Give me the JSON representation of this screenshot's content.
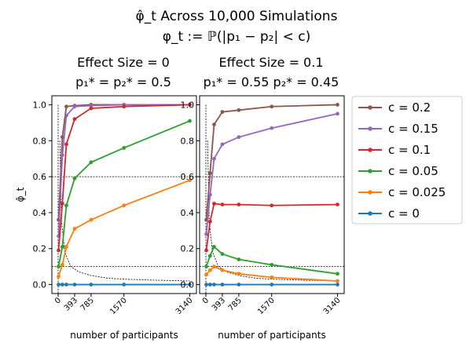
{
  "figure": {
    "title_line1": "φ̂_t Across 10,000 Simulations",
    "title_line2": "φ_t := ℙ(|p₁ − p₂| < c)"
  },
  "shared": {
    "xlabel": "number of participants",
    "ylabel": "φ̂_t",
    "x_ticks": [
      0,
      393,
      785,
      1570,
      3140
    ],
    "y_ticks": [
      0.0,
      0.2,
      0.4,
      0.6,
      0.8,
      1.0
    ],
    "y_tick_labels": [
      "0.0",
      "0.2",
      "0.4",
      "0.6",
      "0.8",
      "1.0"
    ],
    "xlim": [
      -150,
      3300
    ],
    "ylim": [
      -0.05,
      1.05
    ],
    "grid": false,
    "reference_lines": {
      "vertical_x": 0,
      "horizontal_y": [
        0.6,
        0.1
      ],
      "curve_x": [
        40,
        80,
        160,
        300,
        500,
        785,
        1200,
        1570,
        2200,
        3140
      ],
      "curve_y": [
        0.8,
        0.35,
        0.18,
        0.1,
        0.07,
        0.05,
        0.035,
        0.03,
        0.025,
        0.02
      ]
    }
  },
  "legend": {
    "position": "right",
    "entries": [
      "c = 0.2",
      "c = 0.15",
      "c = 0.1",
      "c = 0.05",
      "c = 0.025",
      "c = 0"
    ],
    "colors": [
      "#8c564b",
      "#9467bd",
      "#d62728",
      "#2ca02c",
      "#ff7f0e",
      "#1f77b4"
    ]
  },
  "chart_data": [
    {
      "type": "line",
      "title_line1": "Effect Size = 0",
      "title_line2": "p₁* = p₂* = 0.5",
      "x": [
        10,
        100,
        196,
        393,
        785,
        1570,
        3140
      ],
      "series": [
        {
          "name": "c = 0.2",
          "color": "#8c564b",
          "values": [
            0.36,
            0.82,
            0.99,
            0.995,
            1.0,
            1.0,
            1.0
          ]
        },
        {
          "name": "c = 0.15",
          "color": "#9467bd",
          "values": [
            0.27,
            0.72,
            0.94,
            0.99,
            0.995,
            1.0,
            1.0
          ]
        },
        {
          "name": "c = 0.1",
          "color": "#d62728",
          "values": [
            0.19,
            0.45,
            0.78,
            0.92,
            0.98,
            0.99,
            1.0
          ]
        },
        {
          "name": "c = 0.05",
          "color": "#2ca02c",
          "values": [
            0.1,
            0.21,
            0.44,
            0.59,
            0.68,
            0.76,
            0.91
          ]
        },
        {
          "name": "c = 0.025",
          "color": "#ff7f0e",
          "values": [
            0.045,
            0.11,
            0.21,
            0.31,
            0.36,
            0.44,
            0.58
          ]
        },
        {
          "name": "c = 0",
          "color": "#1f77b4",
          "values": [
            0.0,
            0.0,
            0.0,
            0.0,
            0.0,
            0.0,
            0.0
          ]
        }
      ]
    },
    {
      "type": "line",
      "title_line1": "Effect Size = 0.1",
      "title_line2": "p₁* = 0.55 p₂* = 0.45",
      "x": [
        10,
        100,
        196,
        393,
        785,
        1570,
        3140
      ],
      "series": [
        {
          "name": "c = 0.2",
          "color": "#8c564b",
          "values": [
            0.36,
            0.62,
            0.89,
            0.96,
            0.97,
            0.99,
            1.0
          ]
        },
        {
          "name": "c = 0.15",
          "color": "#9467bd",
          "values": [
            0.28,
            0.5,
            0.7,
            0.78,
            0.82,
            0.87,
            0.95
          ]
        },
        {
          "name": "c = 0.1",
          "color": "#d62728",
          "values": [
            0.19,
            0.35,
            0.45,
            0.445,
            0.445,
            0.44,
            0.445
          ]
        },
        {
          "name": "c = 0.05",
          "color": "#2ca02c",
          "values": [
            0.1,
            0.16,
            0.21,
            0.17,
            0.14,
            0.11,
            0.06
          ]
        },
        {
          "name": "c = 0.025",
          "color": "#ff7f0e",
          "values": [
            0.055,
            0.08,
            0.1,
            0.08,
            0.06,
            0.04,
            0.02
          ]
        },
        {
          "name": "c = 0",
          "color": "#1f77b4",
          "values": [
            0.0,
            0.0,
            0.0,
            0.0,
            0.0,
            0.0,
            0.0
          ]
        }
      ]
    }
  ]
}
